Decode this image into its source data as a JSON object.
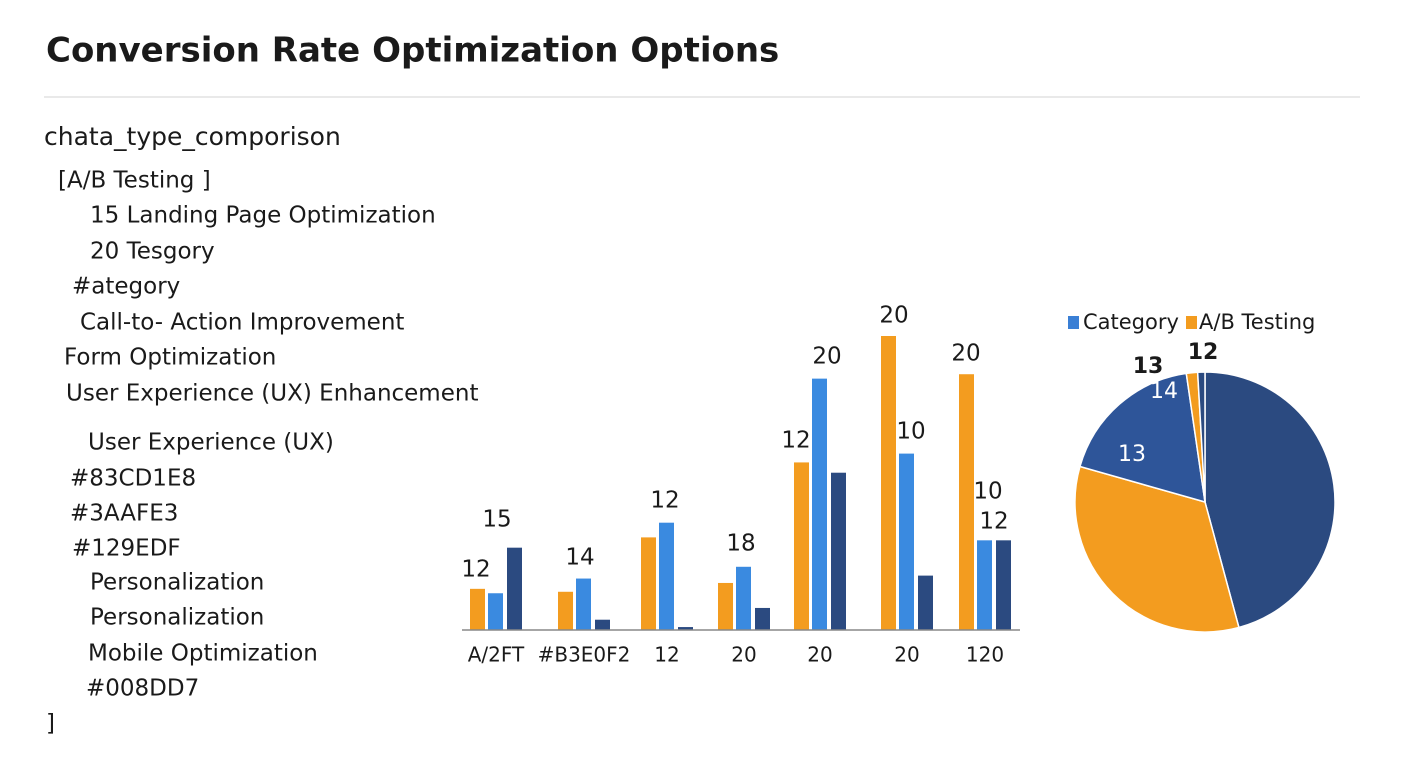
{
  "header": {
    "title": "Conversion Rate Optimization Options"
  },
  "notes": [
    "chata_type_comporison",
    "[A/B Testing ]",
    "15  Landing Page Optimization",
    "20 Tesgory",
    "#ategory",
    "Call-to- Action  Improvement",
    "Form Optimization",
    "User Experience (UX) Enhancement",
    "User Experience (UX)",
    "#83CD1E8",
    "#3AAFE3",
    "#129EDF",
    "Personalization",
    "Personalization",
    "Mobile Optimization",
    "#008DD7",
    "]"
  ],
  "chart_data": [
    {
      "type": "bar",
      "categories": [
        "A/2FT",
        "#B3E0F2",
        "12",
        "20",
        "20",
        "20",
        "120"
      ],
      "series": [
        {
          "color": "#F39C1F",
          "values": [
            2.8,
            2.6,
            6.3,
            3.2,
            11.4,
            20,
            17.4
          ]
        },
        {
          "color": "#3A8AE0",
          "values": [
            2.5,
            3.5,
            7.3,
            4.3,
            17.1,
            12,
            6.1
          ]
        },
        {
          "color": "#2B4A80",
          "values": [
            5.6,
            0.7,
            0.2,
            1.5,
            10.7,
            3.7,
            6.1
          ]
        }
      ],
      "ylim": [
        0,
        20
      ],
      "annotations": [
        "15",
        "12",
        "14",
        "12",
        "18",
        "12",
        "20",
        "20",
        "20",
        "10",
        "10",
        "12"
      ]
    },
    {
      "type": "pie",
      "values": [
        45.8,
        33.6,
        18.3,
        1.4,
        0.9
      ],
      "colors": [
        "#2B4A80",
        "#F39C1F",
        "#2E5599",
        "#F39C1F",
        "#2B4A80"
      ],
      "legend": [
        {
          "name": "Category",
          "color": "#3A7FD5"
        },
        {
          "name": "A/B Testing",
          "color": "#F39C1F"
        }
      ],
      "annotations": [
        "13",
        "12",
        "14",
        "13"
      ]
    }
  ]
}
